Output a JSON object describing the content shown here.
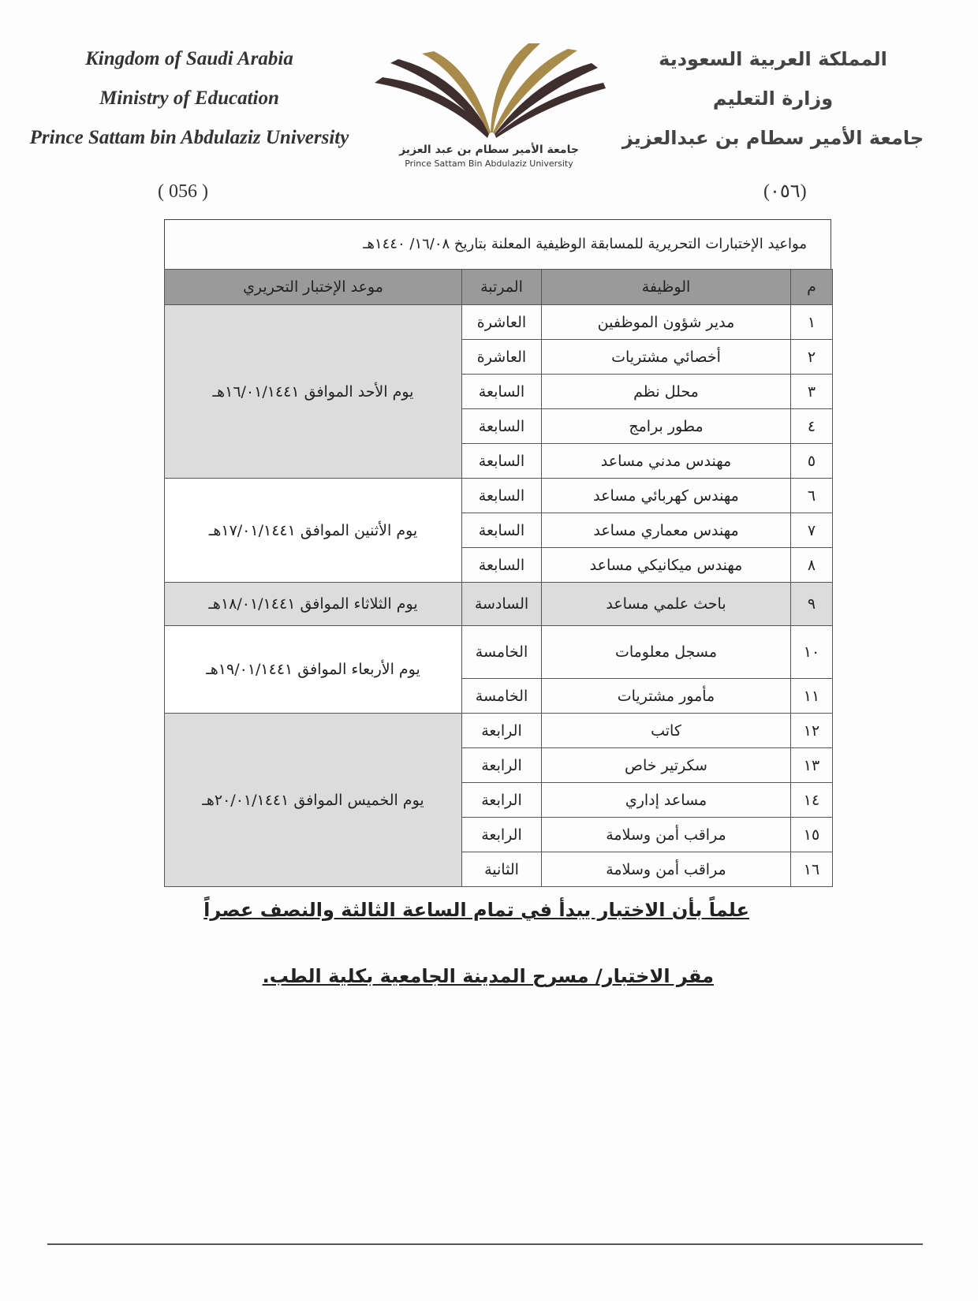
{
  "header": {
    "english": [
      "Kingdom of Saudi Arabia",
      "Ministry of Education",
      "Prince Sattam bin Abdulaziz University"
    ],
    "number_en": "( 056 )",
    "arabic": [
      "المملكة العربية السعودية",
      "وزارة التعليم",
      "جامعة الأمير سطام بن عبدالعزيز"
    ],
    "number_ar": "(٠٥٦)",
    "logo": {
      "ar": "جامعة الأمير سطام بن عبد العزيز",
      "en": "Prince Sattam Bin Abdulaziz University",
      "colors": [
        "#a88a4a",
        "#3e2e2e"
      ]
    }
  },
  "table": {
    "title": "مواعيد  الإختبارات التحريرية للمسابقة الوظيفية المعلنة بتاريخ ١٦/٠٨/ ١٤٤٠هـ",
    "columns": [
      "م",
      "الوظيفة",
      "المرتبة",
      "موعد الإختبار التحريري"
    ],
    "rows": [
      {
        "n": "١",
        "job": "مدير شؤون الموظفين",
        "rank": "العاشرة"
      },
      {
        "n": "٢",
        "job": "أخصائي مشتريات",
        "rank": "العاشرة"
      },
      {
        "n": "٣",
        "job": "محلل نظم",
        "rank": "السابعة"
      },
      {
        "n": "٤",
        "job": "مطور برامج",
        "rank": "السابعة"
      },
      {
        "n": "٥",
        "job": "مهندس مدني مساعد",
        "rank": "السابعة"
      },
      {
        "n": "٦",
        "job": "مهندس كهربائي مساعد",
        "rank": "السابعة"
      },
      {
        "n": "٧",
        "job": "مهندس معماري مساعد",
        "rank": "السابعة"
      },
      {
        "n": "٨",
        "job": "مهندس ميكانيكي مساعد",
        "rank": "السابعة"
      },
      {
        "n": "٩",
        "job": "باحث علمي مساعد",
        "rank": "السادسة"
      },
      {
        "n": "١٠",
        "job": "مسجل معلومات",
        "rank": "الخامسة"
      },
      {
        "n": "١١",
        "job": "مأمور مشتريات",
        "rank": "الخامسة"
      },
      {
        "n": "١٢",
        "job": "كاتب",
        "rank": "الرابعة"
      },
      {
        "n": "١٣",
        "job": "سكرتير خاص",
        "rank": "الرابعة"
      },
      {
        "n": "١٤",
        "job": "مساعد إداري",
        "rank": "الرابعة"
      },
      {
        "n": "١٥",
        "job": "مراقب أمن وسلامة",
        "rank": "الرابعة"
      },
      {
        "n": "١٦",
        "job": "مراقب أمن وسلامة",
        "rank": "الثانية"
      }
    ],
    "dates": [
      "يوم الأحد الموافق ١٦/٠١/١٤٤١هـ",
      "يوم الأثنين الموافق ١٧/٠١/١٤٤١هـ",
      "يوم الثلاثاء الموافق ١٨/٠١/١٤٤١هـ",
      "يوم الأربعاء الموافق ١٩/٠١/١٤٤١هـ",
      "يوم الخميس الموافق ٢٠/٠١/١٤٤١هـ"
    ]
  },
  "notes": [
    "علماً بأن الاختبار يبدأ في تمام الساعة الثالثة والنصف عصراً",
    "مقر الاختبار/ مسرح المدينة الجامعية بكلية الطب."
  ]
}
